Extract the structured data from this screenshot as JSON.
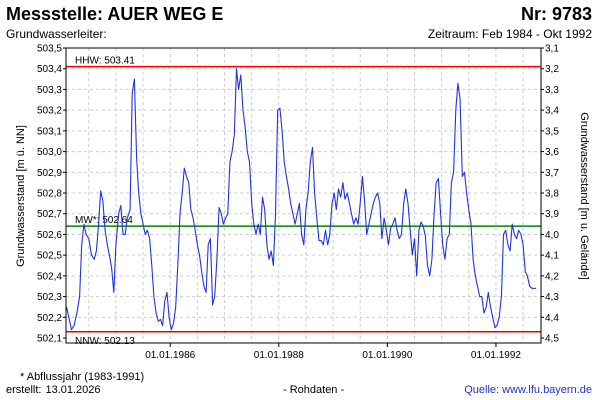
{
  "header": {
    "title": "Messstelle: AUER WEG E",
    "number": "Nr: 9783",
    "aquifer": "Grundwasserleiter:",
    "period": "Zeitraum: Feb 1984 - Okt 1992"
  },
  "footer": {
    "note": "* Abflussjahr (1983-1991)",
    "created_label": "erstellt:",
    "created_date": "13.01.2026",
    "rawdata": "- Rohdaten -",
    "source": "Quelle: www.lfu.bayern.de"
  },
  "colors": {
    "series": "#2233dd",
    "hhw": "#ee0000",
    "nnw": "#ee0000",
    "mw": "#008800",
    "grid": "#cccccc"
  },
  "chart_data": {
    "type": "line",
    "xlabel": "",
    "ylabel": "Grundwasserstand [m ü. NN]",
    "ylabel_right": "Grundwasserstand [m u. Gelände]",
    "ylim": [
      502.1,
      503.5
    ],
    "xlim": [
      1984.08,
      1992.83
    ],
    "y_ticks": [
      "503,5",
      "503,4",
      "503,3",
      "503,2",
      "503,1",
      "503,0",
      "502,9",
      "502,8",
      "502,7",
      "502,6",
      "502,5",
      "502,4",
      "502,3",
      "502,2",
      "502,1"
    ],
    "y_right_ticks": [
      "3,1",
      "3,2",
      "3,3",
      "3,4",
      "3,5",
      "3,6",
      "3,7",
      "3,8",
      "3,9",
      "4,0",
      "4,1",
      "4,2",
      "4,3",
      "4,4",
      "4,5"
    ],
    "x_ticks": [
      {
        "value": 1986.0,
        "label": "01.01.1986"
      },
      {
        "value": 1988.0,
        "label": "01.01.1988"
      },
      {
        "value": 1990.0,
        "label": "01.01.1990"
      },
      {
        "value": 1992.0,
        "label": "01.01.1992"
      }
    ],
    "grid": true,
    "reference_lines": [
      {
        "key": "hhw",
        "value": 503.41,
        "label": "HHW: 503.41",
        "label_pos": "above"
      },
      {
        "key": "mw",
        "value": 502.64,
        "label": "MW*: 502.64",
        "label_pos": "above"
      },
      {
        "key": "nnw",
        "value": 502.13,
        "label": "NNW: 502.13",
        "label_pos": "below"
      }
    ],
    "series": [
      {
        "points": [
          [
            1984.09,
            502.25
          ],
          [
            1984.14,
            502.19
          ],
          [
            1984.18,
            502.14
          ],
          [
            1984.23,
            502.16
          ],
          [
            1984.28,
            502.22
          ],
          [
            1984.33,
            502.3
          ],
          [
            1984.37,
            502.55
          ],
          [
            1984.41,
            502.65
          ],
          [
            1984.45,
            502.6
          ],
          [
            1984.5,
            502.58
          ],
          [
            1984.55,
            502.5
          ],
          [
            1984.6,
            502.48
          ],
          [
            1984.64,
            502.52
          ],
          [
            1984.68,
            502.65
          ],
          [
            1984.72,
            502.81
          ],
          [
            1984.76,
            502.76
          ],
          [
            1984.8,
            502.62
          ],
          [
            1984.84,
            502.55
          ],
          [
            1984.88,
            502.5
          ],
          [
            1984.92,
            502.44
          ],
          [
            1984.96,
            502.32
          ],
          [
            1985.0,
            502.55
          ],
          [
            1985.05,
            502.7
          ],
          [
            1985.09,
            502.74
          ],
          [
            1985.13,
            502.6
          ],
          [
            1985.17,
            502.6
          ],
          [
            1985.21,
            502.68
          ],
          [
            1985.26,
            502.72
          ],
          [
            1985.3,
            503.28
          ],
          [
            1985.34,
            503.35
          ],
          [
            1985.38,
            502.97
          ],
          [
            1985.42,
            502.8
          ],
          [
            1985.46,
            502.7
          ],
          [
            1985.5,
            502.65
          ],
          [
            1985.54,
            502.6
          ],
          [
            1985.58,
            502.62
          ],
          [
            1985.62,
            502.58
          ],
          [
            1985.66,
            502.45
          ],
          [
            1985.7,
            502.3
          ],
          [
            1985.74,
            502.22
          ],
          [
            1985.78,
            502.18
          ],
          [
            1985.82,
            502.19
          ],
          [
            1985.86,
            502.16
          ],
          [
            1985.9,
            502.28
          ],
          [
            1985.94,
            502.32
          ],
          [
            1985.98,
            502.2
          ],
          [
            1986.02,
            502.14
          ],
          [
            1986.06,
            502.17
          ],
          [
            1986.1,
            502.25
          ],
          [
            1986.14,
            502.45
          ],
          [
            1986.18,
            502.7
          ],
          [
            1986.22,
            502.8
          ],
          [
            1986.26,
            502.92
          ],
          [
            1986.3,
            502.88
          ],
          [
            1986.34,
            502.85
          ],
          [
            1986.38,
            502.72
          ],
          [
            1986.42,
            502.68
          ],
          [
            1986.46,
            502.62
          ],
          [
            1986.5,
            502.55
          ],
          [
            1986.54,
            502.5
          ],
          [
            1986.58,
            502.42
          ],
          [
            1986.62,
            502.35
          ],
          [
            1986.66,
            502.32
          ],
          [
            1986.7,
            502.55
          ],
          [
            1986.74,
            502.58
          ],
          [
            1986.78,
            502.26
          ],
          [
            1986.82,
            502.3
          ],
          [
            1986.86,
            502.48
          ],
          [
            1986.9,
            502.73
          ],
          [
            1986.94,
            502.7
          ],
          [
            1986.98,
            502.65
          ],
          [
            1987.02,
            502.68
          ],
          [
            1987.06,
            502.7
          ],
          [
            1987.1,
            502.95
          ],
          [
            1987.14,
            503.0
          ],
          [
            1987.18,
            503.08
          ],
          [
            1987.22,
            503.4
          ],
          [
            1987.26,
            503.3
          ],
          [
            1987.3,
            503.37
          ],
          [
            1987.34,
            503.2
          ],
          [
            1987.38,
            503.12
          ],
          [
            1987.42,
            503.0
          ],
          [
            1987.46,
            502.95
          ],
          [
            1987.5,
            502.75
          ],
          [
            1987.54,
            502.65
          ],
          [
            1987.58,
            502.6
          ],
          [
            1987.62,
            502.65
          ],
          [
            1987.66,
            502.6
          ],
          [
            1987.7,
            502.78
          ],
          [
            1987.74,
            502.72
          ],
          [
            1987.78,
            502.55
          ],
          [
            1987.82,
            502.48
          ],
          [
            1987.86,
            502.52
          ],
          [
            1987.9,
            502.45
          ],
          [
            1987.94,
            502.7
          ],
          [
            1987.98,
            503.2
          ],
          [
            1988.02,
            503.21
          ],
          [
            1988.06,
            503.1
          ],
          [
            1988.1,
            502.95
          ],
          [
            1988.14,
            502.88
          ],
          [
            1988.18,
            502.82
          ],
          [
            1988.22,
            502.75
          ],
          [
            1988.26,
            502.7
          ],
          [
            1988.3,
            502.65
          ],
          [
            1988.34,
            502.7
          ],
          [
            1988.38,
            502.75
          ],
          [
            1988.42,
            502.6
          ],
          [
            1988.46,
            502.55
          ],
          [
            1988.5,
            502.72
          ],
          [
            1988.54,
            502.8
          ],
          [
            1988.58,
            502.95
          ],
          [
            1988.62,
            503.02
          ],
          [
            1988.66,
            502.8
          ],
          [
            1988.7,
            502.68
          ],
          [
            1988.74,
            502.57
          ],
          [
            1988.78,
            502.57
          ],
          [
            1988.82,
            502.55
          ],
          [
            1988.86,
            502.62
          ],
          [
            1988.9,
            502.55
          ],
          [
            1988.94,
            502.6
          ],
          [
            1988.98,
            502.75
          ],
          [
            1989.02,
            502.8
          ],
          [
            1989.06,
            502.72
          ],
          [
            1989.1,
            502.82
          ],
          [
            1989.14,
            502.78
          ],
          [
            1989.18,
            502.85
          ],
          [
            1989.22,
            502.77
          ],
          [
            1989.26,
            502.8
          ],
          [
            1989.3,
            502.75
          ],
          [
            1989.34,
            502.7
          ],
          [
            1989.38,
            502.65
          ],
          [
            1989.42,
            502.68
          ],
          [
            1989.46,
            502.65
          ],
          [
            1989.5,
            502.75
          ],
          [
            1989.54,
            502.88
          ],
          [
            1989.58,
            502.76
          ],
          [
            1989.62,
            502.6
          ],
          [
            1989.66,
            502.65
          ],
          [
            1989.7,
            502.7
          ],
          [
            1989.74,
            502.75
          ],
          [
            1989.78,
            502.78
          ],
          [
            1989.82,
            502.8
          ],
          [
            1989.86,
            502.75
          ],
          [
            1989.9,
            502.58
          ],
          [
            1989.94,
            502.68
          ],
          [
            1989.98,
            502.62
          ],
          [
            1990.02,
            502.55
          ],
          [
            1990.06,
            502.63
          ],
          [
            1990.1,
            502.65
          ],
          [
            1990.14,
            502.68
          ],
          [
            1990.18,
            502.62
          ],
          [
            1990.22,
            502.58
          ],
          [
            1990.26,
            502.6
          ],
          [
            1990.3,
            502.75
          ],
          [
            1990.34,
            502.82
          ],
          [
            1990.38,
            502.75
          ],
          [
            1990.42,
            502.62
          ],
          [
            1990.46,
            502.5
          ],
          [
            1990.5,
            502.58
          ],
          [
            1990.54,
            502.4
          ],
          [
            1990.58,
            502.62
          ],
          [
            1990.62,
            502.66
          ],
          [
            1990.66,
            502.64
          ],
          [
            1990.7,
            502.59
          ],
          [
            1990.74,
            502.45
          ],
          [
            1990.78,
            502.4
          ],
          [
            1990.82,
            502.48
          ],
          [
            1990.86,
            502.7
          ],
          [
            1990.9,
            502.85
          ],
          [
            1990.94,
            502.87
          ],
          [
            1990.98,
            502.7
          ],
          [
            1991.02,
            502.55
          ],
          [
            1991.06,
            502.48
          ],
          [
            1991.1,
            502.58
          ],
          [
            1991.14,
            502.6
          ],
          [
            1991.18,
            502.85
          ],
          [
            1991.22,
            502.9
          ],
          [
            1991.26,
            503.2
          ],
          [
            1991.3,
            503.33
          ],
          [
            1991.34,
            503.25
          ],
          [
            1991.38,
            502.88
          ],
          [
            1991.42,
            502.9
          ],
          [
            1991.46,
            502.8
          ],
          [
            1991.5,
            502.72
          ],
          [
            1991.54,
            502.65
          ],
          [
            1991.58,
            502.48
          ],
          [
            1991.62,
            502.4
          ],
          [
            1991.66,
            502.35
          ],
          [
            1991.7,
            502.3
          ],
          [
            1991.74,
            502.3
          ],
          [
            1991.78,
            502.22
          ],
          [
            1991.82,
            502.25
          ],
          [
            1991.86,
            502.32
          ],
          [
            1991.9,
            502.25
          ],
          [
            1991.94,
            502.2
          ],
          [
            1991.98,
            502.15
          ],
          [
            1992.02,
            502.16
          ],
          [
            1992.06,
            502.2
          ],
          [
            1992.1,
            502.3
          ],
          [
            1992.14,
            502.6
          ],
          [
            1992.18,
            502.62
          ],
          [
            1992.22,
            502.55
          ],
          [
            1992.26,
            502.52
          ],
          [
            1992.3,
            502.65
          ],
          [
            1992.34,
            502.6
          ],
          [
            1992.38,
            502.58
          ],
          [
            1992.42,
            502.62
          ],
          [
            1992.46,
            502.6
          ],
          [
            1992.5,
            502.55
          ],
          [
            1992.54,
            502.42
          ],
          [
            1992.58,
            502.4
          ],
          [
            1992.62,
            502.35
          ],
          [
            1992.66,
            502.34
          ],
          [
            1992.7,
            502.34
          ],
          [
            1992.74,
            502.34
          ]
        ]
      }
    ]
  }
}
